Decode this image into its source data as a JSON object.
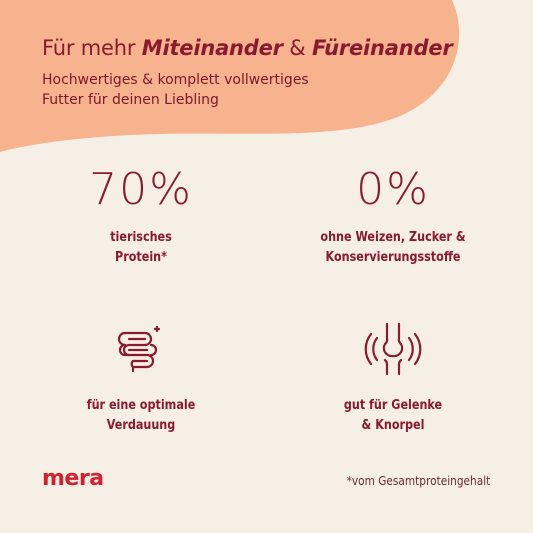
{
  "header": {
    "title_plain": "Für mehr ",
    "title_em1": "Miteinander",
    "title_amp": " & ",
    "title_em2": "Füreinander",
    "subtitle_line1": "Hochwertiges & komplett vollwertiges",
    "subtitle_line2": "Futter für deinen Liebling"
  },
  "features": {
    "protein": {
      "value": "70%",
      "caption_line1": "tierisches",
      "caption_line2": "Protein*"
    },
    "free_from": {
      "value": "0%",
      "caption_line1": "ohne Weizen, Zucker &",
      "caption_line2": "Konservierungsstoffe"
    },
    "digestion": {
      "icon": "intestine-icon",
      "caption_line1": "für eine optimale",
      "caption_line2": "Verdauung"
    },
    "joints": {
      "icon": "joint-icon",
      "caption_line1": "gut für Gelenke",
      "caption_line2": "& Knorpel"
    }
  },
  "brand": {
    "logo": "mera",
    "logo_color": "#d4202f"
  },
  "footnote": "*vom Gesamtproteingehalt",
  "colors": {
    "background": "#f6efe6",
    "blob": "#f7b28e",
    "accent": "#8a1a2e"
  }
}
